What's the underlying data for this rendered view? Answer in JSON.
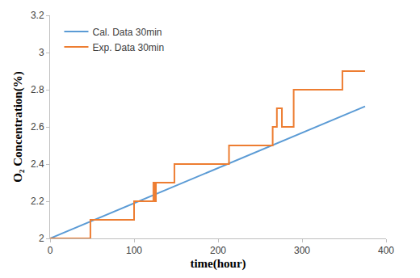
{
  "chart_data": {
    "type": "line",
    "x_label": "time(hour)",
    "y_label": "O₂ Concentration(%)",
    "xlim": [
      0,
      400
    ],
    "xticks": [
      0,
      100,
      200,
      300,
      400
    ],
    "ylim": [
      2,
      3.2
    ],
    "yticks": [
      2,
      2.2,
      2.4,
      2.6,
      2.8,
      3,
      3.2
    ],
    "grid": false,
    "legend": "top-left",
    "series": [
      {
        "name": "Cal. Data 30min",
        "color": "#5b9bd5",
        "line_style": "solid",
        "x": [
          0,
          375
        ],
        "values": [
          2,
          2.71
        ]
      },
      {
        "name": "Exp. Data 30min",
        "color": "#ed7d31",
        "line_style": "solid",
        "x": [
          0,
          48,
          48,
          100,
          100,
          123,
          123,
          125,
          125,
          126,
          126,
          148,
          148,
          213,
          213,
          265,
          265,
          270,
          270,
          276,
          276,
          290,
          290,
          348,
          348,
          375
        ],
        "values": [
          2,
          2,
          2.1,
          2.1,
          2.2,
          2.2,
          2.3,
          2.3,
          2.2,
          2.2,
          2.3,
          2.3,
          2.4,
          2.4,
          2.5,
          2.5,
          2.6,
          2.6,
          2.7,
          2.7,
          2.6,
          2.6,
          2.8,
          2.8,
          2.9,
          2.9
        ]
      }
    ]
  }
}
